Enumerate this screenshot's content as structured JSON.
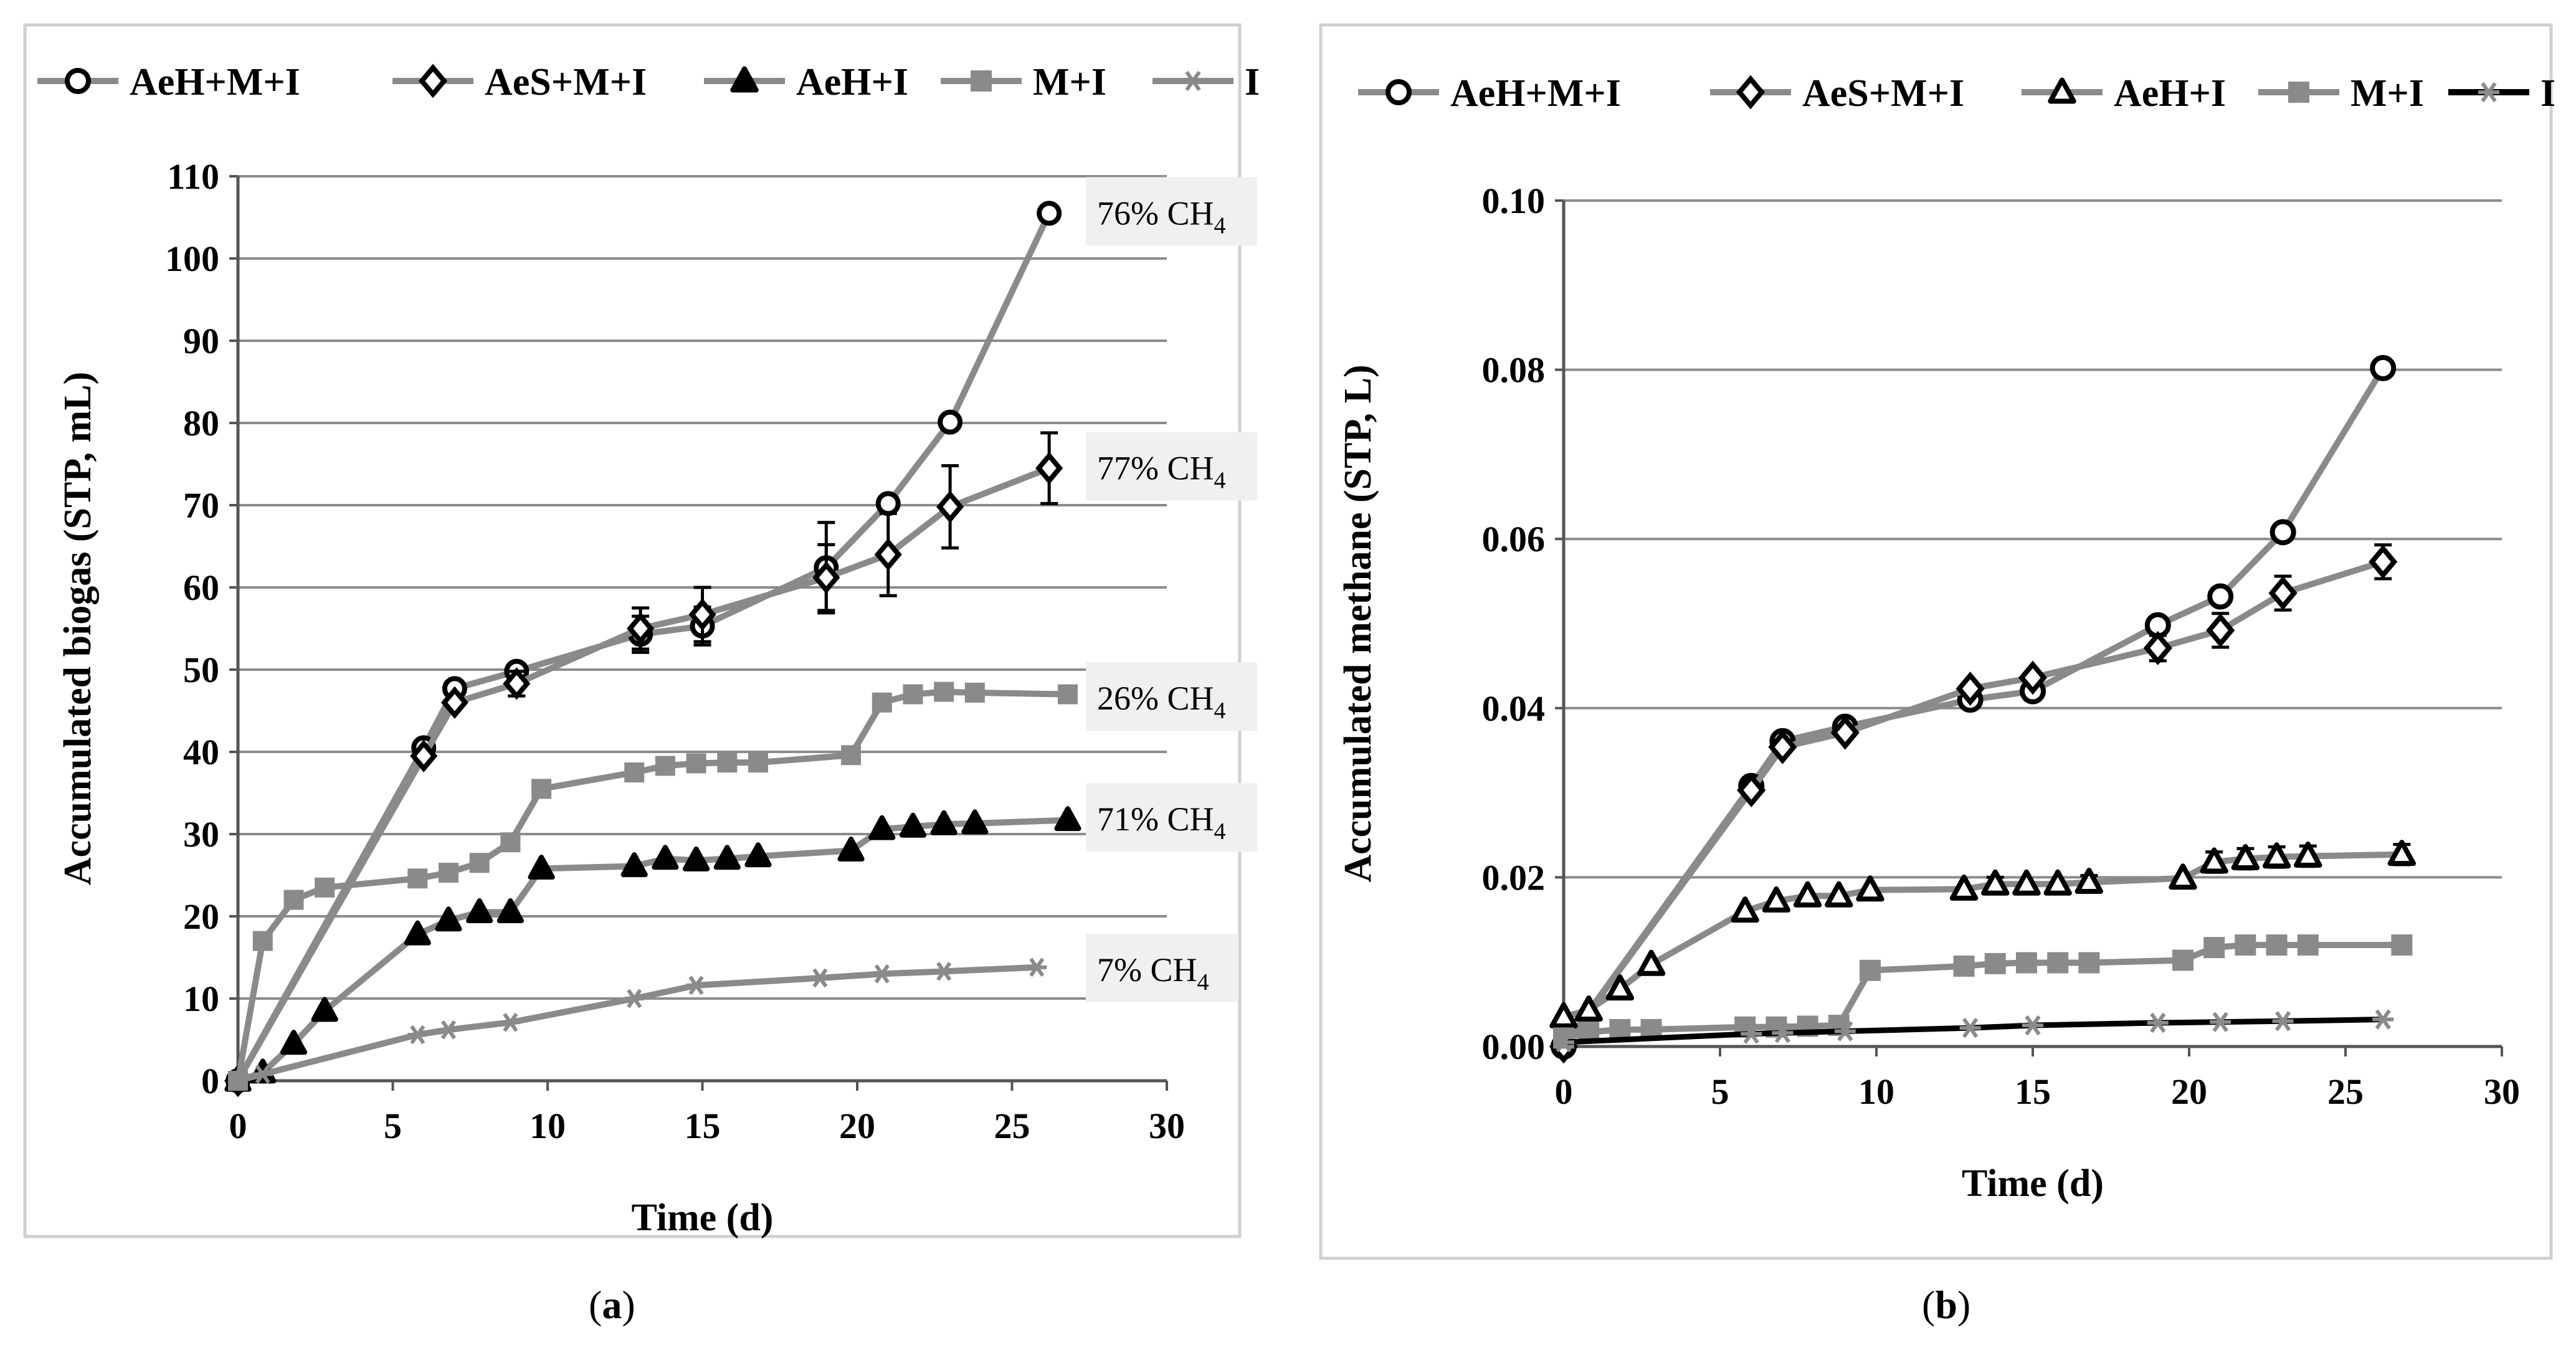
{
  "figure": {
    "panel_labels": [
      "a",
      "b"
    ]
  },
  "colors": {
    "series_gray": "#8a8a8a",
    "dark": "#000000",
    "grid": "#8c8c8c",
    "frame": "#d0d0d0",
    "annot_bg": "#f0f0f0"
  },
  "chart_data": [
    {
      "id": "a",
      "type": "line",
      "title": "",
      "xlabel": "Time (d)",
      "ylabel": "Accumulated biogas (STP, mL)",
      "xlim": [
        0,
        30
      ],
      "xticks": [
        0,
        5,
        10,
        15,
        20,
        25,
        30
      ],
      "ylim": [
        0,
        110
      ],
      "yticks": [
        0,
        10,
        20,
        30,
        40,
        50,
        60,
        70,
        80,
        90,
        100,
        110
      ],
      "ytick_decimals": 0,
      "grid": true,
      "legend": {
        "placement": "top",
        "entries": [
          "AeH+M+I",
          "AeS+M+I",
          "AeH+I",
          "M+I",
          "I"
        ]
      },
      "series": [
        {
          "name": "AeH+M+I",
          "marker": "circle",
          "fill": "white",
          "line": "gray",
          "x": [
            0,
            6,
            7,
            9,
            13,
            15,
            19,
            21,
            23,
            26.2
          ],
          "y": [
            0,
            40.5,
            47.7,
            49.8,
            54.3,
            55.3,
            62.4,
            70.2,
            80.1,
            105.5
          ],
          "err": [
            0,
            0,
            0,
            0,
            2.2,
            2.3,
            5.5,
            0,
            0,
            0
          ]
        },
        {
          "name": "AeS+M+I",
          "marker": "diamond",
          "fill": "white",
          "line": "gray",
          "x": [
            0,
            6,
            7,
            9,
            13,
            15,
            19,
            21,
            23,
            26.2
          ],
          "y": [
            0,
            39.5,
            46.0,
            48.3,
            55.0,
            56.7,
            61.2,
            64.0,
            69.8,
            74.5
          ],
          "err": [
            0,
            0,
            0,
            1.5,
            2.5,
            3.3,
            4.0,
            5.0,
            5.0,
            4.3
          ]
        },
        {
          "name": "AeH+I",
          "marker": "triangle",
          "fill": "#000000",
          "line": "gray",
          "x": [
            0,
            0.8,
            1.8,
            2.8,
            5.8,
            6.8,
            7.8,
            8.8,
            9.8,
            12.8,
            13.8,
            14.8,
            15.8,
            16.8,
            19.8,
            20.8,
            21.8,
            22.8,
            23.8,
            26.8
          ],
          "y": [
            0,
            1.0,
            4.5,
            8.5,
            17.8,
            19.5,
            20.5,
            20.5,
            25.8,
            26.1,
            27.0,
            26.8,
            27.0,
            27.3,
            28.0,
            30.6,
            30.9,
            31.2,
            31.3,
            31.7
          ],
          "err": []
        },
        {
          "name": "M+I",
          "marker": "square",
          "fill": "gray",
          "line": "gray",
          "x": [
            0,
            0.8,
            1.8,
            2.8,
            5.8,
            6.8,
            7.8,
            8.8,
            9.8,
            12.8,
            13.8,
            14.8,
            15.8,
            16.8,
            19.8,
            20.8,
            21.8,
            22.8,
            23.8,
            26.8
          ],
          "y": [
            0,
            17.0,
            22.0,
            23.5,
            24.6,
            25.3,
            26.5,
            29.0,
            35.5,
            37.5,
            38.3,
            38.6,
            38.7,
            38.7,
            39.6,
            46.0,
            47.0,
            47.3,
            47.2,
            47.0
          ],
          "err": []
        },
        {
          "name": "I",
          "marker": "asterisk",
          "fill": "gray",
          "line": "gray",
          "x": [
            0,
            0.8,
            5.8,
            6.8,
            8.8,
            12.8,
            14.8,
            18.8,
            20.8,
            22.8,
            25.8
          ],
          "y": [
            0,
            0.8,
            5.6,
            6.2,
            7.1,
            10.0,
            11.6,
            12.5,
            13.0,
            13.3,
            13.8
          ],
          "err": []
        }
      ],
      "annotations": [
        {
          "pre": "76% CH",
          "sub": "4",
          "y": 105.5
        },
        {
          "pre": "77% CH",
          "sub": "4",
          "y": 74.5
        },
        {
          "pre": "26% CH",
          "sub": "4",
          "y": 46.5
        },
        {
          "pre": "71% CH",
          "sub": "4",
          "y": 31.8
        },
        {
          "pre": "7% CH",
          "sub": "4",
          "y": 13.5
        }
      ]
    },
    {
      "id": "b",
      "type": "line",
      "title": "",
      "xlabel": "Time (d)",
      "ylabel": "Accumulated methane (STP, L)",
      "xlim": [
        0,
        30
      ],
      "xticks": [
        0,
        5,
        10,
        15,
        20,
        25,
        30
      ],
      "ylim": [
        0,
        0.1
      ],
      "yticks": [
        0,
        0.02,
        0.04,
        0.06,
        0.08,
        0.1
      ],
      "ytick_decimals": 2,
      "grid": true,
      "legend": {
        "placement": "top",
        "entries": [
          "AeH+M+I",
          "AeS+M+I",
          "AeH+I",
          "M+I",
          "I"
        ]
      },
      "series": [
        {
          "name": "AeH+M+I",
          "marker": "circle",
          "fill": "white",
          "line": "gray",
          "x": [
            0,
            6,
            7,
            9,
            13,
            15,
            19,
            21,
            23,
            26.2
          ],
          "y": [
            0,
            0.0308,
            0.0361,
            0.0378,
            0.041,
            0.042,
            0.0498,
            0.0532,
            0.0608,
            0.0802
          ],
          "err": []
        },
        {
          "name": "AeS+M+I",
          "marker": "diamond",
          "fill": "white",
          "line": "gray",
          "x": [
            0,
            6,
            7,
            9,
            13,
            15,
            19,
            21,
            23,
            26.2
          ],
          "y": [
            0,
            0.0303,
            0.0354,
            0.0371,
            0.0423,
            0.0436,
            0.0471,
            0.0492,
            0.0536,
            0.0573
          ],
          "err": [
            0,
            0,
            0,
            0,
            0,
            0,
            0.0015,
            0.002,
            0.002,
            0.002
          ]
        },
        {
          "name": "AeH+I",
          "marker": "triangle",
          "fill": "white",
          "line": "gray",
          "x": [
            0,
            0.8,
            1.8,
            2.8,
            5.8,
            6.8,
            7.8,
            8.8,
            9.8,
            12.8,
            13.8,
            14.8,
            15.8,
            16.8,
            19.8,
            20.8,
            21.8,
            22.8,
            23.8,
            26.8
          ],
          "y": [
            0.0035,
            0.0043,
            0.0068,
            0.0097,
            0.016,
            0.0172,
            0.0178,
            0.0178,
            0.0185,
            0.0186,
            0.0192,
            0.0192,
            0.0192,
            0.0194,
            0.0199,
            0.0218,
            0.0222,
            0.0224,
            0.0225,
            0.0227
          ],
          "err": [
            0,
            0,
            0,
            0,
            0,
            0,
            0,
            0,
            0,
            0,
            0.0008,
            0,
            0,
            0.0008,
            0,
            0.0012,
            0.0012,
            0.0012,
            0.0012,
            0.0012
          ]
        },
        {
          "name": "M+I",
          "marker": "square",
          "fill": "gray",
          "line": "gray",
          "x": [
            0,
            0.8,
            1.8,
            2.8,
            5.8,
            6.8,
            7.8,
            8.8,
            9.8,
            12.8,
            13.8,
            14.8,
            15.8,
            16.8,
            19.8,
            20.8,
            21.8,
            22.8,
            23.8,
            26.8
          ],
          "y": [
            0.001,
            0.0017,
            0.002,
            0.002,
            0.0023,
            0.0023,
            0.0024,
            0.0025,
            0.009,
            0.0095,
            0.0098,
            0.0099,
            0.0099,
            0.0099,
            0.0102,
            0.0117,
            0.012,
            0.012,
            0.012,
            0.012
          ],
          "err": []
        },
        {
          "name": "I",
          "marker": "asterisk",
          "fill": "gray",
          "line": "dark",
          "x": [
            0,
            6,
            7,
            9,
            13,
            15,
            19,
            21,
            23,
            26.2
          ],
          "y": [
            0.0005,
            0.0015,
            0.0016,
            0.0018,
            0.0022,
            0.0025,
            0.0028,
            0.0029,
            0.003,
            0.0032
          ],
          "err": []
        }
      ],
      "annotations": []
    }
  ]
}
